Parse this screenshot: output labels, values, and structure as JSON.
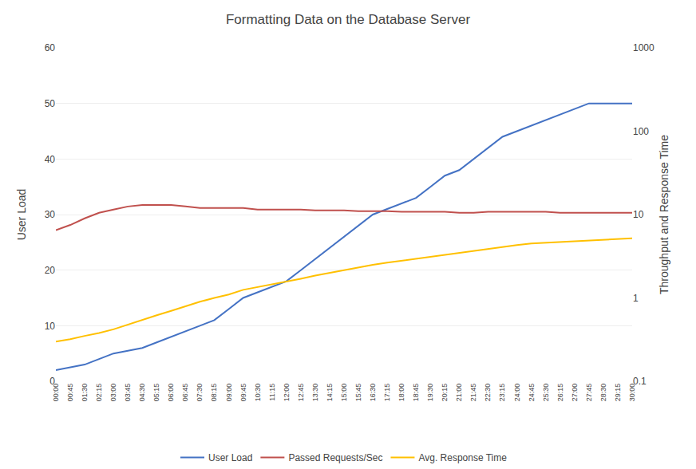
{
  "chart_data": {
    "type": "line",
    "title": "Formatting Data on the Database Server",
    "ylabel": "User Load",
    "y2label": "Throughput and Response Time",
    "categories": [
      "00:00",
      "00:45",
      "01:30",
      "02:15",
      "03:00",
      "03:45",
      "04:30",
      "05:15",
      "06:00",
      "06:45",
      "07:30",
      "08:15",
      "09:00",
      "09:45",
      "10:30",
      "11:15",
      "12:00",
      "12:45",
      "13:30",
      "14:15",
      "15:00",
      "15:45",
      "16:30",
      "17:15",
      "18:00",
      "18:45",
      "19:30",
      "20:15",
      "21:00",
      "21:45",
      "22:30",
      "23:15",
      "24:00",
      "24:45",
      "25:30",
      "26:15",
      "27:00",
      "27:45",
      "28:30",
      "29:15",
      "30:00"
    ],
    "series": [
      {
        "name": "User Load",
        "color": "#4472C4",
        "values": [
          2,
          2.5,
          3,
          4,
          5,
          5.5,
          6,
          7,
          8,
          9,
          10,
          11,
          13,
          15,
          16,
          17,
          18,
          20,
          22,
          24,
          26,
          28,
          30,
          31,
          32,
          33,
          35,
          37,
          38,
          40,
          42,
          44,
          45,
          46,
          47,
          48,
          49,
          50,
          50,
          50,
          50
        ]
      },
      {
        "name": "Passed Requests/Sec",
        "color": "#C0504D",
        "axis": "y2",
        "values": [
          6.5,
          7.5,
          9.0,
          10.5,
          11.5,
          12.5,
          13.0,
          13.0,
          13.0,
          12.5,
          12.0,
          12.0,
          12.0,
          12.0,
          11.5,
          11.5,
          11.5,
          11.5,
          11.2,
          11.2,
          11.2,
          11.0,
          11.0,
          11.0,
          10.8,
          10.8,
          10.8,
          10.8,
          10.5,
          10.5,
          10.8,
          10.8,
          10.8,
          10.8,
          10.8,
          10.5,
          10.5,
          10.5,
          10.5,
          10.5,
          10.5
        ]
      },
      {
        "name": "Avg. Response Time",
        "color": "#FFC000",
        "axis": "y2",
        "values": [
          0.3,
          0.32,
          0.35,
          0.38,
          0.42,
          0.48,
          0.55,
          0.62,
          0.7,
          0.8,
          0.9,
          1.0,
          1.1,
          1.25,
          1.35,
          1.45,
          1.55,
          1.7,
          1.85,
          2.0,
          2.15,
          2.3,
          2.5,
          2.65,
          2.8,
          2.95,
          3.1,
          3.3,
          3.5,
          3.7,
          3.9,
          4.1,
          4.3,
          4.5,
          4.6,
          4.7,
          4.8,
          4.9,
          5.0,
          5.1,
          5.2
        ]
      }
    ],
    "ylim": [
      0,
      60
    ],
    "yticks": [
      0,
      10,
      20,
      30,
      40,
      50,
      60
    ],
    "y2lim": [
      0.1,
      1000
    ],
    "y2ticks": [
      0.1,
      1,
      10,
      100,
      1000
    ],
    "log": "y2",
    "grid": true,
    "legend": "bottom"
  }
}
